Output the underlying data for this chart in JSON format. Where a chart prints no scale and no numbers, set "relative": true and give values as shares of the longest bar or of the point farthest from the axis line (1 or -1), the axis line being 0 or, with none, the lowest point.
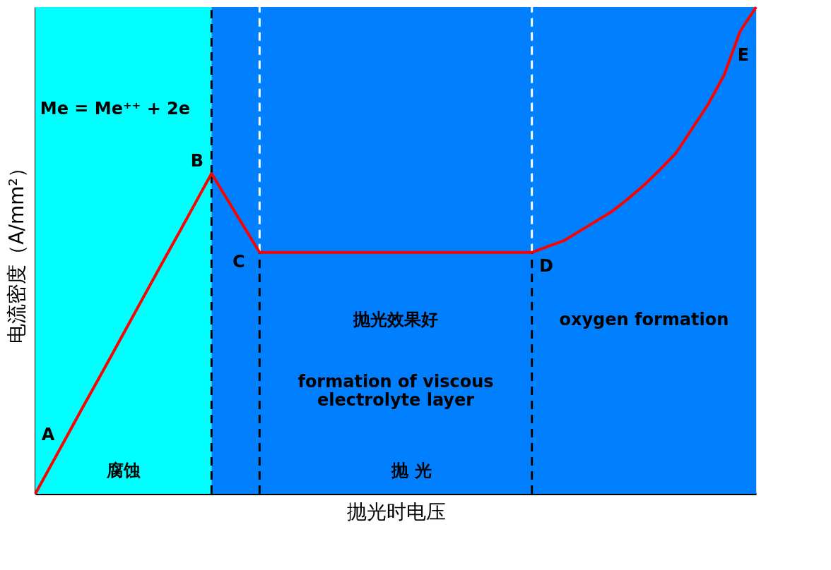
{
  "chart_data": {
    "type": "line",
    "relative": true,
    "xlabel": "抛光时电压",
    "ylabel": "电流密度（A/mm²）",
    "categories": [
      null,
      null,
      null,
      null,
      null,
      null,
      null,
      null,
      null,
      null,
      null,
      null,
      null,
      null,
      null,
      null,
      null,
      null,
      null,
      null,
      null,
      null,
      null,
      null,
      null,
      null,
      null,
      null,
      null,
      null,
      null,
      null,
      null,
      null,
      null,
      null,
      null,
      null,
      null,
      null,
      null,
      null,
      null,
      null,
      null,
      null
    ],
    "series": [
      {
        "color": "#ff0000",
        "values": [
          0,
          0.06,
          0.12,
          0.18,
          0.239,
          0.299,
          0.359,
          0.419,
          0.479,
          0.538,
          0.598,
          0.658,
          0.604,
          0.55,
          0.496,
          0.496,
          0.496,
          0.496,
          0.496,
          0.496,
          0.496,
          0.496,
          0.496,
          0.496,
          0.496,
          0.496,
          0.496,
          0.496,
          0.496,
          0.496,
          0.496,
          0.496,
          0.508,
          0.52,
          0.54,
          0.56,
          0.58,
          0.606,
          0.634,
          0.666,
          0.7,
          0.75,
          0.8,
          0.86,
          0.95,
          1
        ]
      }
    ],
    "annotations": [
      "A",
      "B",
      "C",
      "D",
      "E",
      "Me = Me⁺⁺ + 2e",
      "抛光效果好",
      "oxygen formation",
      "formation of viscous\nelectrolyte layer",
      "腐蚀",
      "抛 光"
    ]
  }
}
